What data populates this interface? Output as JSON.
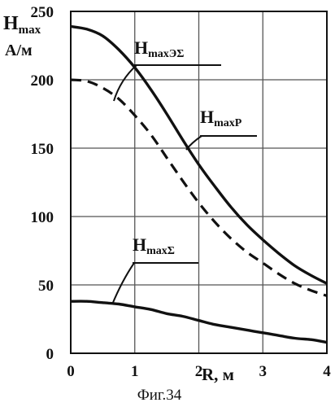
{
  "chart_data": {
    "type": "line",
    "xlabel": "R, м",
    "ylabel": {
      "main": "H",
      "sub": "max",
      "unit": "А/м"
    },
    "xlim": [
      0,
      4
    ],
    "ylim": [
      0,
      250
    ],
    "x_ticks": [
      0,
      1,
      2,
      3,
      4
    ],
    "y_ticks": [
      0,
      50,
      100,
      150,
      200,
      250
    ],
    "grid": true,
    "caption": "Фиг.34",
    "series": [
      {
        "name": "HmaxР",
        "label_main": "H",
        "label_sub": "maxР",
        "style": "solid",
        "x": [
          0,
          0.25,
          0.5,
          0.75,
          1,
          1.25,
          1.5,
          1.75,
          2,
          2.25,
          2.5,
          2.75,
          3,
          3.25,
          3.5,
          3.75,
          4
        ],
        "y": [
          239,
          237,
          232,
          222,
          209,
          193,
          175,
          156,
          138,
          122,
          107,
          94,
          83,
          73,
          64,
          57,
          51
        ]
      },
      {
        "name": "HmaxЭΣ",
        "label_main": "H",
        "label_sub": "maxЭΣ",
        "style": "dashed",
        "x": [
          0,
          0.25,
          0.5,
          0.75,
          1,
          1.25,
          1.5,
          1.75,
          2,
          2.25,
          2.5,
          2.75,
          3,
          3.25,
          3.5,
          3.75,
          4
        ],
        "y": [
          200,
          199,
          194,
          186,
          174,
          160,
          143,
          126,
          110,
          96,
          84,
          74,
          66,
          58,
          51,
          46,
          42
        ]
      },
      {
        "name": "HmaxΣ",
        "label_main": "H",
        "label_sub": "maxΣ",
        "style": "solid",
        "x": [
          0,
          0.25,
          0.5,
          0.75,
          1,
          1.25,
          1.5,
          1.75,
          2,
          2.25,
          2.5,
          2.75,
          3,
          3.25,
          3.5,
          3.75,
          4
        ],
        "y": [
          38,
          38,
          37,
          36,
          34,
          32,
          29,
          27,
          24,
          21,
          19,
          17,
          15,
          13,
          11,
          10,
          8
        ]
      }
    ]
  }
}
